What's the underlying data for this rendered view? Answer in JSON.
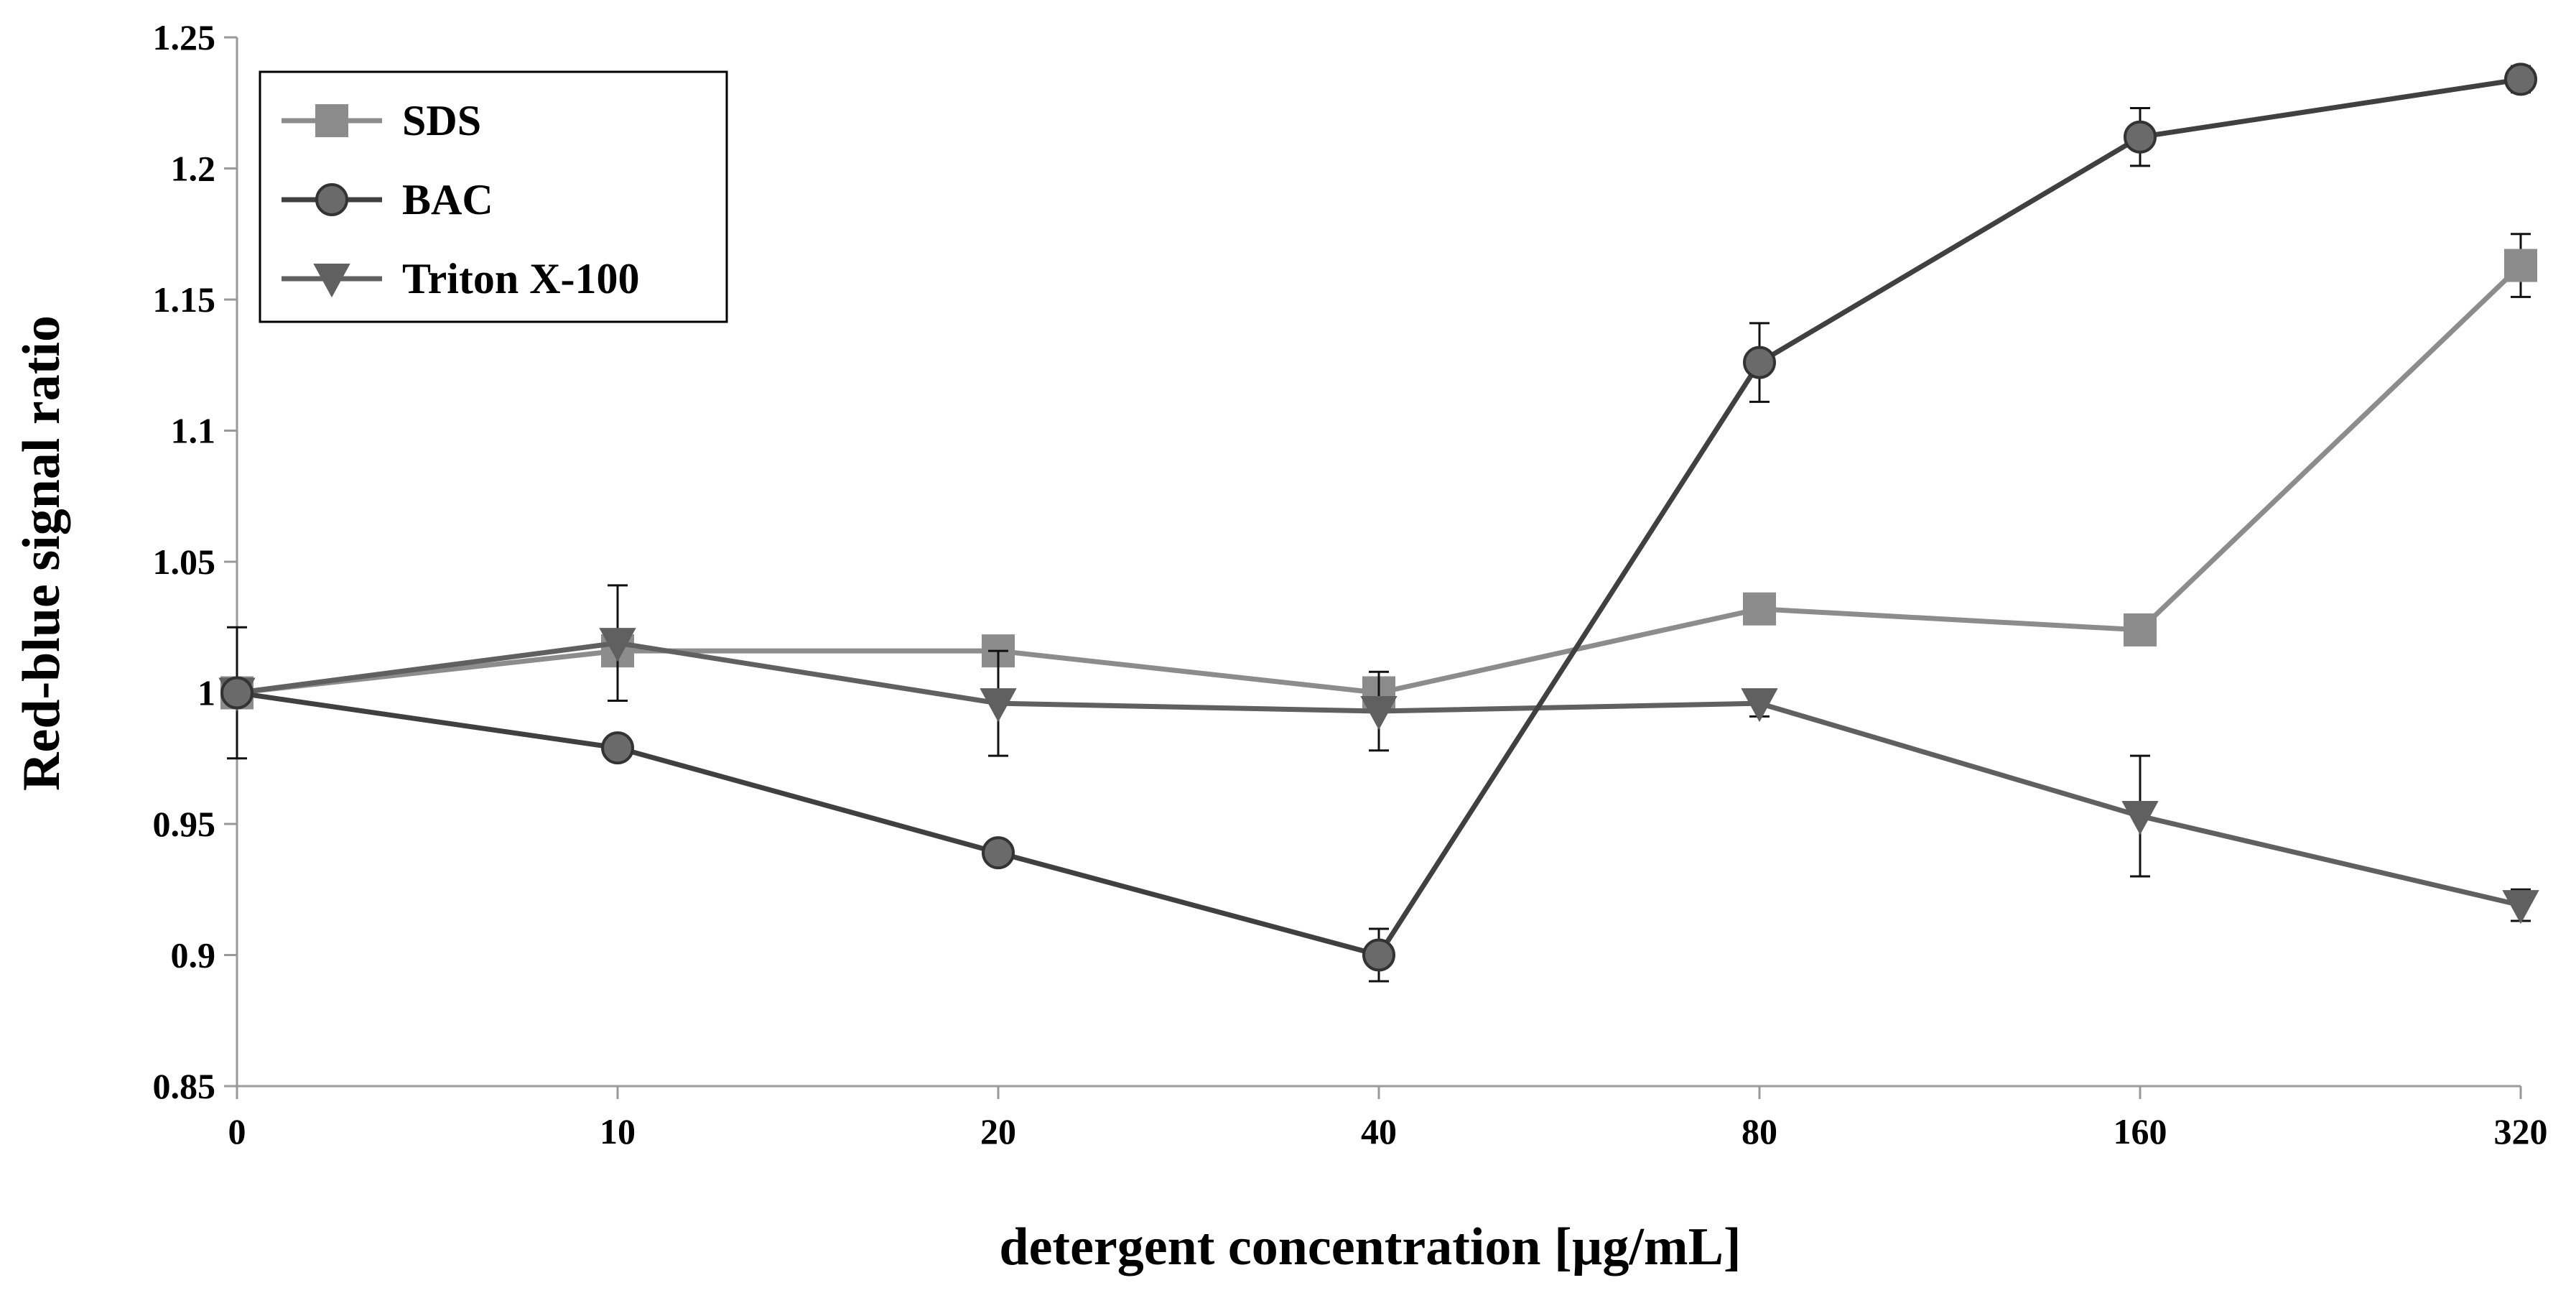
{
  "chart_data": {
    "type": "line",
    "title": "",
    "xlabel": "detergent concentration [µg/mL]",
    "ylabel": "Red-blue signal ratio",
    "categories": [
      "0",
      "10",
      "20",
      "40",
      "80",
      "160",
      "320"
    ],
    "ylim": [
      0.85,
      1.25
    ],
    "yticks": [
      "0.85",
      "0.9",
      "0.95",
      "1",
      "1.05",
      "1.1",
      "1.15",
      "1.2",
      "1.25"
    ],
    "ytick_values": [
      0.85,
      0.9,
      0.95,
      1.0,
      1.05,
      1.1,
      1.15,
      1.2,
      1.25
    ],
    "grid": false,
    "legend_position": "top-left",
    "series": [
      {
        "name": "SDS",
        "marker": "square",
        "color": "#8c8c8c",
        "values": [
          1.0,
          1.016,
          1.016,
          1.0,
          1.032,
          1.024,
          1.163
        ],
        "errors": [
          0.003,
          0.004,
          0.004,
          0.004,
          0.004,
          0.004,
          0.012
        ]
      },
      {
        "name": "BAC",
        "marker": "circle",
        "color": "#404040",
        "values": [
          1.0,
          0.979,
          0.939,
          0.9,
          1.126,
          1.212,
          1.234
        ],
        "errors": [
          0.003,
          0.003,
          0.003,
          0.01,
          0.015,
          0.011,
          0.005
        ]
      },
      {
        "name": "Triton X-100",
        "marker": "triangle-down",
        "color": "#606060",
        "values": [
          1.0,
          1.019,
          0.996,
          0.993,
          0.996,
          0.953,
          0.919
        ],
        "errors": [
          0.025,
          0.022,
          0.02,
          0.015,
          0.005,
          0.023,
          0.006
        ]
      }
    ]
  }
}
